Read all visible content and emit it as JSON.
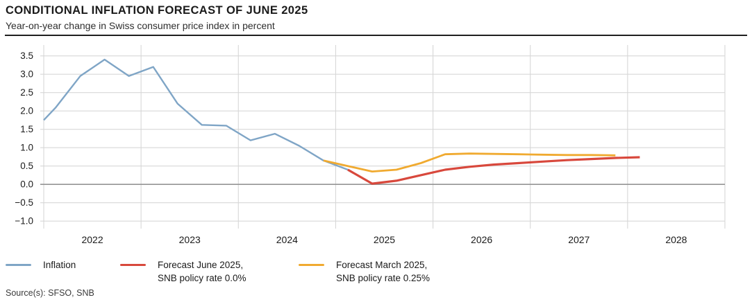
{
  "header": {
    "title": "CONDITIONAL INFLATION FORECAST OF JUNE 2025",
    "subtitle": "Year-on-year change in Swiss consumer price index in percent"
  },
  "source": "Source(s): SFSO, SNB",
  "colors": {
    "inflation_blue": "#7FA5C6",
    "forecast_june_red": "#D8483C",
    "forecast_march_orange": "#F0AA30",
    "grid": "#D7D7D7",
    "zero_line": "#949494",
    "axis_text": "#1A1A1A",
    "rule": "#1F1F1F"
  },
  "legend": [
    {
      "line1": "Inflation",
      "line2": "",
      "color": "#7FA5C6"
    },
    {
      "line1": "Forecast June 2025,",
      "line2": "SNB policy rate 0.0%",
      "color": "#D8483C"
    },
    {
      "line1": "Forecast March 2025,",
      "line2": "SNB policy rate 0.25%",
      "color": "#F0AA30"
    }
  ],
  "chart_data": {
    "type": "line",
    "title": "CONDITIONAL INFLATION FORECAST OF JUNE 2025",
    "subtitle": "Year-on-year change in Swiss consumer price index in percent",
    "ylabel": "Year-on-year change in Swiss consumer price index in percent",
    "xlabel": "",
    "grid": true,
    "legend_position": "bottom",
    "xlim": [
      2022,
      2029
    ],
    "ylim": [
      -1.2,
      3.8
    ],
    "x_gridline_years": [
      2022,
      2023,
      2024,
      2025,
      2026,
      2027,
      2028,
      2029
    ],
    "x_ticks": [
      {
        "v": 2022,
        "label": "2022"
      },
      {
        "v": 2023,
        "label": "2023"
      },
      {
        "v": 2024,
        "label": "2024"
      },
      {
        "v": 2025,
        "label": "2025"
      },
      {
        "v": 2026,
        "label": "2026"
      },
      {
        "v": 2027,
        "label": "2027"
      },
      {
        "v": 2028,
        "label": "2028"
      }
    ],
    "y_ticks": [
      {
        "v": 3.5,
        "label": "3.5"
      },
      {
        "v": 3.0,
        "label": "3.0"
      },
      {
        "v": 2.5,
        "label": "2.5"
      },
      {
        "v": 2.0,
        "label": "2.0"
      },
      {
        "v": 1.5,
        "label": "1.5"
      },
      {
        "v": 1.0,
        "label": "1.0"
      },
      {
        "v": 0.5,
        "label": "0.5"
      },
      {
        "v": 0.0,
        "label": "0.0"
      },
      {
        "v": -0.5,
        "label": "−0.5"
      },
      {
        "v": -1.0,
        "label": "−1.0"
      }
    ],
    "series": [
      {
        "name": "Inflation",
        "color": "#7FA5C6",
        "width": 2.4,
        "points": [
          [
            2022.0,
            1.75
          ],
          [
            2022.125,
            2.1
          ],
          [
            2022.375,
            2.95
          ],
          [
            2022.625,
            3.4
          ],
          [
            2022.875,
            2.95
          ],
          [
            2023.125,
            3.2
          ],
          [
            2023.375,
            2.2
          ],
          [
            2023.625,
            1.62
          ],
          [
            2023.875,
            1.6
          ],
          [
            2024.125,
            1.2
          ],
          [
            2024.375,
            1.38
          ],
          [
            2024.625,
            1.05
          ],
          [
            2024.875,
            0.65
          ],
          [
            2025.125,
            0.4
          ]
        ]
      },
      {
        "name": "Forecast March 2025, SNB policy rate 0.25%",
        "color": "#F0AA30",
        "width": 2.8,
        "points": [
          [
            2024.875,
            0.65
          ],
          [
            2025.125,
            0.5
          ],
          [
            2025.375,
            0.35
          ],
          [
            2025.625,
            0.4
          ],
          [
            2025.875,
            0.58
          ],
          [
            2026.125,
            0.82
          ],
          [
            2026.375,
            0.84
          ],
          [
            2026.625,
            0.83
          ],
          [
            2026.875,
            0.82
          ],
          [
            2027.125,
            0.81
          ],
          [
            2027.375,
            0.8
          ],
          [
            2027.625,
            0.8
          ],
          [
            2027.875,
            0.79
          ]
        ]
      },
      {
        "name": "Forecast June 2025, SNB policy rate 0.0%",
        "color": "#D8483C",
        "width": 3.2,
        "points": [
          [
            2025.125,
            0.4
          ],
          [
            2025.375,
            0.02
          ],
          [
            2025.625,
            0.1
          ],
          [
            2025.875,
            0.25
          ],
          [
            2026.125,
            0.4
          ],
          [
            2026.375,
            0.48
          ],
          [
            2026.625,
            0.54
          ],
          [
            2026.875,
            0.58
          ],
          [
            2027.125,
            0.62
          ],
          [
            2027.375,
            0.66
          ],
          [
            2027.625,
            0.69
          ],
          [
            2027.875,
            0.72
          ],
          [
            2028.125,
            0.74
          ]
        ]
      }
    ]
  }
}
